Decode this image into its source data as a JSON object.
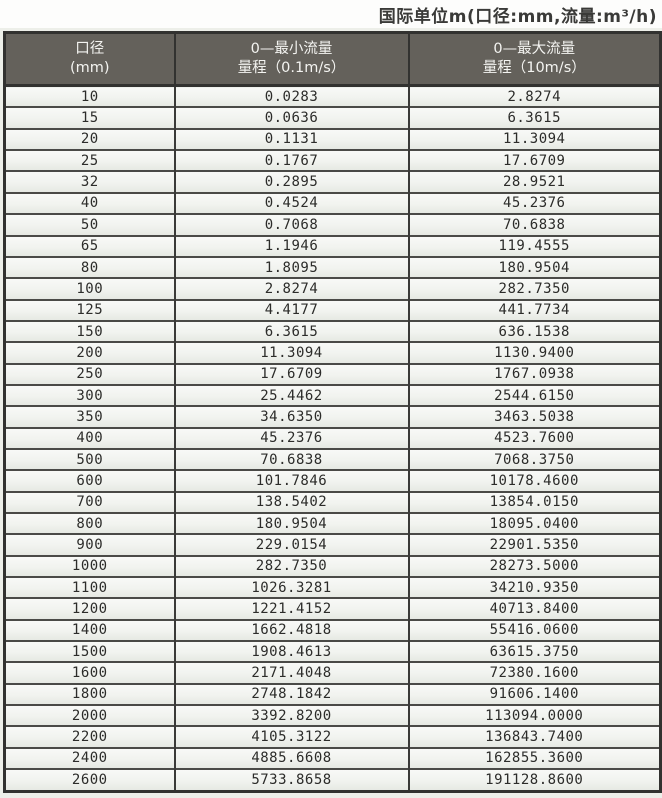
{
  "page": {
    "title": "国际单位m(口径:mm,流量:m³/h)"
  },
  "colors": {
    "header_background": "#64615b",
    "header_text": "#f4f4f1",
    "table_border": "#323230",
    "row_separator": "#4a4a47",
    "row_background": "#eef0ec",
    "cell_text": "#2c2c2a",
    "page_background": "#edefe9"
  },
  "table": {
    "headers": [
      {
        "line1": "口径",
        "line2": "(mm)"
      },
      {
        "line1": "0—最小流量",
        "line2": "量程（0.1m/s）"
      },
      {
        "line1": "0—最大流量",
        "line2": "量程（10m/s）"
      }
    ],
    "rows": [
      [
        "10",
        "0.0283",
        "2.8274"
      ],
      [
        "15",
        "0.0636",
        "6.3615"
      ],
      [
        "20",
        "0.1131",
        "11.3094"
      ],
      [
        "25",
        "0.1767",
        "17.6709"
      ],
      [
        "32",
        "0.2895",
        "28.9521"
      ],
      [
        "40",
        "0.4524",
        "45.2376"
      ],
      [
        "50",
        "0.7068",
        "70.6838"
      ],
      [
        "65",
        "1.1946",
        "119.4555"
      ],
      [
        "80",
        "1.8095",
        "180.9504"
      ],
      [
        "100",
        "2.8274",
        "282.7350"
      ],
      [
        "125",
        "4.4177",
        "441.7734"
      ],
      [
        "150",
        "6.3615",
        "636.1538"
      ],
      [
        "200",
        "11.3094",
        "1130.9400"
      ],
      [
        "250",
        "17.6709",
        "1767.0938"
      ],
      [
        "300",
        "25.4462",
        "2544.6150"
      ],
      [
        "350",
        "34.6350",
        "3463.5038"
      ],
      [
        "400",
        "45.2376",
        "4523.7600"
      ],
      [
        "500",
        "70.6838",
        "7068.3750"
      ],
      [
        "600",
        "101.7846",
        "10178.4600"
      ],
      [
        "700",
        "138.5402",
        "13854.0150"
      ],
      [
        "800",
        "180.9504",
        "18095.0400"
      ],
      [
        "900",
        "229.0154",
        "22901.5350"
      ],
      [
        "1000",
        "282.7350",
        "28273.5000"
      ],
      [
        "1100",
        "1026.3281",
        "34210.9350"
      ],
      [
        "1200",
        "1221.4152",
        "40713.8400"
      ],
      [
        "1400",
        "1662.4818",
        "55416.0600"
      ],
      [
        "1500",
        "1908.4613",
        "63615.3750"
      ],
      [
        "1600",
        "2171.4048",
        "72380.1600"
      ],
      [
        "1800",
        "2748.1842",
        "91606.1400"
      ],
      [
        "2000",
        "3392.8200",
        "113094.0000"
      ],
      [
        "2200",
        "4105.3122",
        "136843.7400"
      ],
      [
        "2400",
        "4885.6608",
        "162855.3600"
      ],
      [
        "2600",
        "5733.8658",
        "191128.8600"
      ]
    ]
  }
}
